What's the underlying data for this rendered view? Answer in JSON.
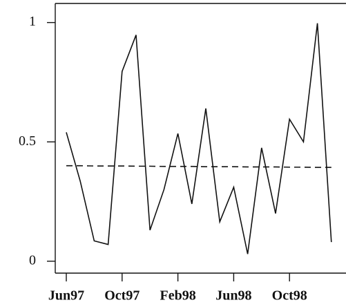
{
  "chart_data": {
    "type": "line",
    "categories": [
      "Jun97",
      null,
      null,
      null,
      "Oct97",
      null,
      null,
      null,
      "Feb98",
      null,
      null,
      null,
      "Jun98",
      null,
      null,
      null,
      "Oct98",
      null,
      null,
      null
    ],
    "series": [
      {
        "color": "#111111",
        "dash": false,
        "values": [
          0.54,
          0.335,
          0.085,
          0.07,
          0.795,
          0.948,
          0.13,
          0.3,
          0.535,
          0.24,
          0.64,
          0.165,
          0.31,
          0.03,
          0.475,
          0.2,
          0.595,
          0.5,
          0.997,
          0.08
        ]
      },
      {
        "color": "#111111",
        "dash": true,
        "values": [
          0.4,
          0.4,
          0.399,
          0.399,
          0.399,
          0.398,
          0.398,
          0.397,
          0.397,
          0.397,
          0.396,
          0.396,
          0.396,
          0.395,
          0.395,
          0.395,
          0.394,
          0.394,
          0.393,
          0.393
        ]
      }
    ],
    "ylim": [
      -0.05,
      1.08
    ],
    "yticks": [
      0,
      0.5,
      1
    ],
    "grid": false
  }
}
